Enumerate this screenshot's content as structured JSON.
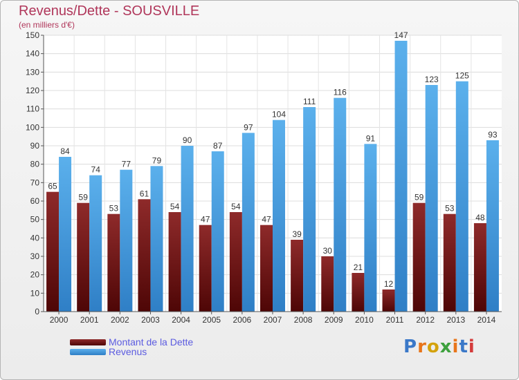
{
  "title": "Revenus/Dette - SOUSVILLE",
  "subtitle": "(en milliers d'€)",
  "chart_data": {
    "type": "bar",
    "categories": [
      "2000",
      "2001",
      "2002",
      "2003",
      "2004",
      "2005",
      "2006",
      "2007",
      "2008",
      "2009",
      "2010",
      "2011",
      "2012",
      "2013",
      "2014"
    ],
    "series": [
      {
        "name": "Montant de la Dette",
        "color": "#7a1c1c",
        "values": [
          65,
          59,
          53,
          61,
          54,
          47,
          54,
          47,
          39,
          30,
          21,
          12,
          59,
          53,
          48
        ]
      },
      {
        "name": "Revenus",
        "color": "#4ea3e3",
        "values": [
          84,
          74,
          77,
          79,
          90,
          87,
          97,
          104,
          111,
          116,
          91,
          147,
          123,
          125,
          93
        ]
      }
    ],
    "ylim": [
      0,
      150
    ],
    "yticks": [
      0,
      10,
      20,
      30,
      40,
      50,
      60,
      70,
      80,
      90,
      100,
      110,
      120,
      130,
      140,
      150
    ],
    "grid": true,
    "legend_position": "bottom-left"
  },
  "logo": {
    "text": "Proxiti",
    "letter_colors": [
      "#3a78c8",
      "#e8751a",
      "#d4a20c",
      "#3ea13e",
      "#e8751a",
      "#3a78c8",
      "#d43b3b"
    ]
  }
}
